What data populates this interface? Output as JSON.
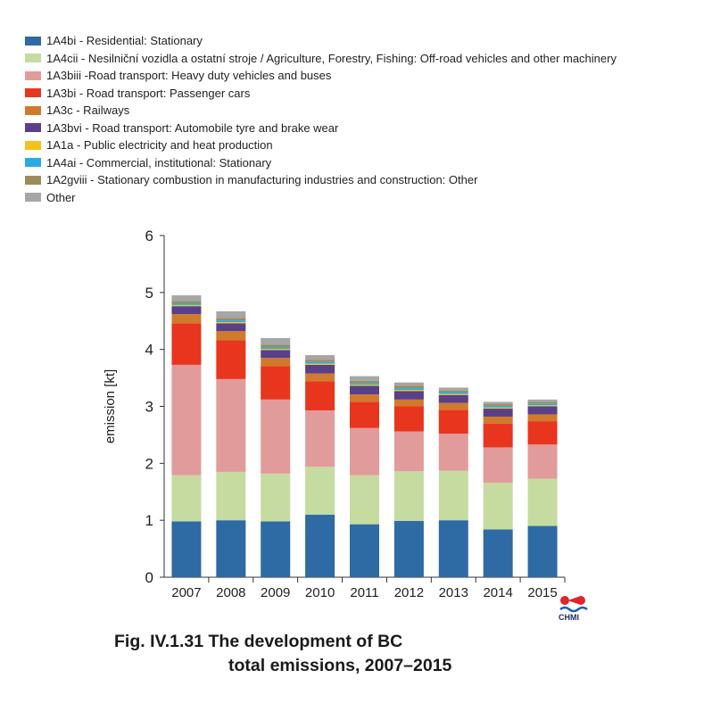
{
  "chart_data": {
    "type": "bar",
    "stacked": true,
    "categories": [
      "2007",
      "2008",
      "2009",
      "2010",
      "2011",
      "2012",
      "2013",
      "2014",
      "2015"
    ],
    "ylabel": "emission [kt]",
    "xlabel": "",
    "ylim": [
      0,
      6
    ],
    "yticks": [
      0,
      1,
      2,
      3,
      4,
      5,
      6
    ],
    "grid": false,
    "legend_position": "top-left",
    "series": [
      {
        "name": "1A4bi - Residential: Stationary",
        "color": "#2e6aa4",
        "values": [
          0.98,
          1.0,
          0.98,
          1.1,
          0.93,
          0.99,
          1.0,
          0.84,
          0.9
        ]
      },
      {
        "name": "1A4cii - Nesilniční vozidla a ostatní stroje / Agriculture, Forestry, Fishing: Off-road vehicles and other machinery",
        "color": "#c5dba0",
        "values": [
          0.81,
          0.85,
          0.84,
          0.84,
          0.86,
          0.87,
          0.87,
          0.82,
          0.83
        ]
      },
      {
        "name": "1A3biii -Road transport: Heavy duty vehicles and buses",
        "color": "#e19b9b",
        "values": [
          1.94,
          1.63,
          1.3,
          0.99,
          0.83,
          0.7,
          0.65,
          0.62,
          0.6
        ]
      },
      {
        "name": "1A3bi - Road transport: Passenger cars",
        "color": "#e8351e",
        "values": [
          0.73,
          0.68,
          0.59,
          0.51,
          0.46,
          0.44,
          0.42,
          0.42,
          0.41
        ]
      },
      {
        "name": "1A3c - Railways",
        "color": "#d07a2c",
        "values": [
          0.16,
          0.16,
          0.14,
          0.14,
          0.13,
          0.12,
          0.12,
          0.12,
          0.12
        ]
      },
      {
        "name": "1A3bvi - Road transport: Automobile tyre and brake wear",
        "color": "#5a3f8a",
        "values": [
          0.14,
          0.14,
          0.14,
          0.15,
          0.15,
          0.15,
          0.14,
          0.14,
          0.14
        ]
      },
      {
        "name": "1A1a - Public electricity and heat production",
        "color": "#f5c21b",
        "values": [
          0.02,
          0.02,
          0.02,
          0.02,
          0.02,
          0.02,
          0.02,
          0.02,
          0.02
        ]
      },
      {
        "name": "1A4ai - Commercial, institutional: Stationary",
        "color": "#29abe2",
        "values": [
          0.03,
          0.03,
          0.03,
          0.03,
          0.03,
          0.03,
          0.03,
          0.03,
          0.03
        ]
      },
      {
        "name": "1A2gviii - Stationary combustion in manufacturing industries and construction: Other",
        "color": "#9c8c5a",
        "values": [
          0.04,
          0.04,
          0.04,
          0.04,
          0.04,
          0.04,
          0.03,
          0.03,
          0.03
        ]
      },
      {
        "name": "Other",
        "color": "#a6a6a6",
        "values": [
          0.1,
          0.12,
          0.12,
          0.08,
          0.08,
          0.06,
          0.05,
          0.04,
          0.04
        ]
      }
    ]
  },
  "caption": {
    "line1": "Fig. IV.1.31 The development of BC",
    "line2": "total emissions, 2007–2015"
  },
  "logo": {
    "text": "CHMI",
    "icon": "chmi-logo-icon"
  }
}
